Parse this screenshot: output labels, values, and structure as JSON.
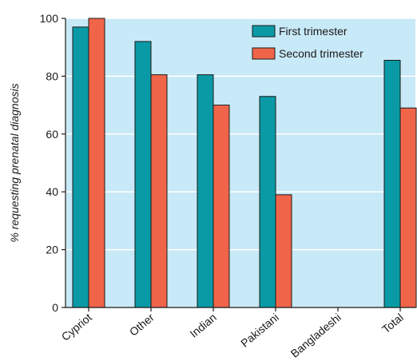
{
  "chart_data": {
    "type": "bar",
    "title": "",
    "xlabel": "",
    "ylabel": "% requesting prenatal diagnosis",
    "ylim": [
      0,
      100
    ],
    "yticks": [
      0,
      20,
      40,
      60,
      80,
      100
    ],
    "categories": [
      "Cypriot",
      "Other",
      "Indian",
      "Pakistani",
      "Bangladeshi",
      "Total"
    ],
    "series": [
      {
        "name": "First trimester",
        "color": "#0a9aa6",
        "values": [
          97,
          92,
          80.5,
          73,
          null,
          85.5
        ]
      },
      {
        "name": "Second trimester",
        "color": "#f0654a",
        "values": [
          100,
          80.5,
          70,
          39,
          null,
          69
        ]
      }
    ],
    "grid": true,
    "legend_position": "top-right",
    "plot_background": "#c8e9f7"
  }
}
